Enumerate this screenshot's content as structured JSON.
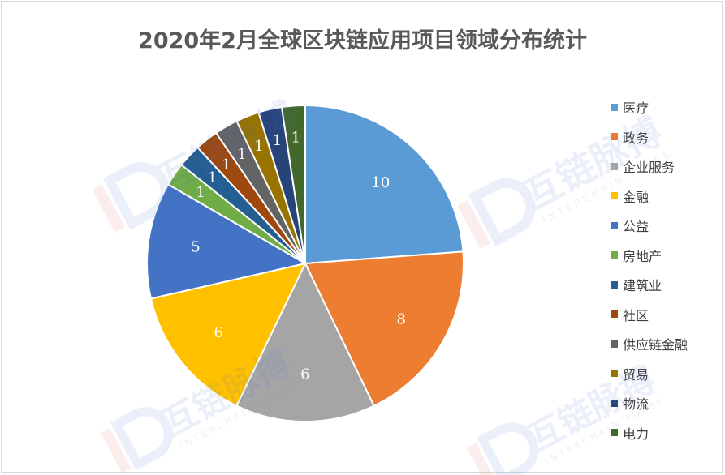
{
  "chart_data": {
    "type": "pie",
    "title": "2020年2月全球区块链应用项目领域分布统计",
    "categories": [
      "医疗",
      "政务",
      "企业服务",
      "金融",
      "公益",
      "房地产",
      "建筑业",
      "社区",
      "供应链金融",
      "贸易",
      "物流",
      "电力"
    ],
    "values": [
      10,
      8,
      6,
      6,
      5,
      1,
      1,
      1,
      1,
      1,
      1,
      1
    ],
    "colors": [
      "#5b9bd5",
      "#ed7d31",
      "#a5a5a5",
      "#ffc000",
      "#4472c4",
      "#70ad47",
      "#255e91",
      "#9e480e",
      "#636363",
      "#997300",
      "#264478",
      "#43682b"
    ],
    "label_colors": [
      "#ffffff",
      "#ffffff",
      "#ffffff",
      "#ffffff",
      "#ffffff",
      "#ffffff",
      "#ffffff",
      "#ffffff",
      "#ffffff",
      "#ffffff",
      "#ffffff",
      "#ffffff"
    ],
    "legend_position": "right",
    "data_labels": true
  },
  "watermark": {
    "text": "互链脉搏",
    "subtext": "INTERCHAIN PULSE"
  }
}
